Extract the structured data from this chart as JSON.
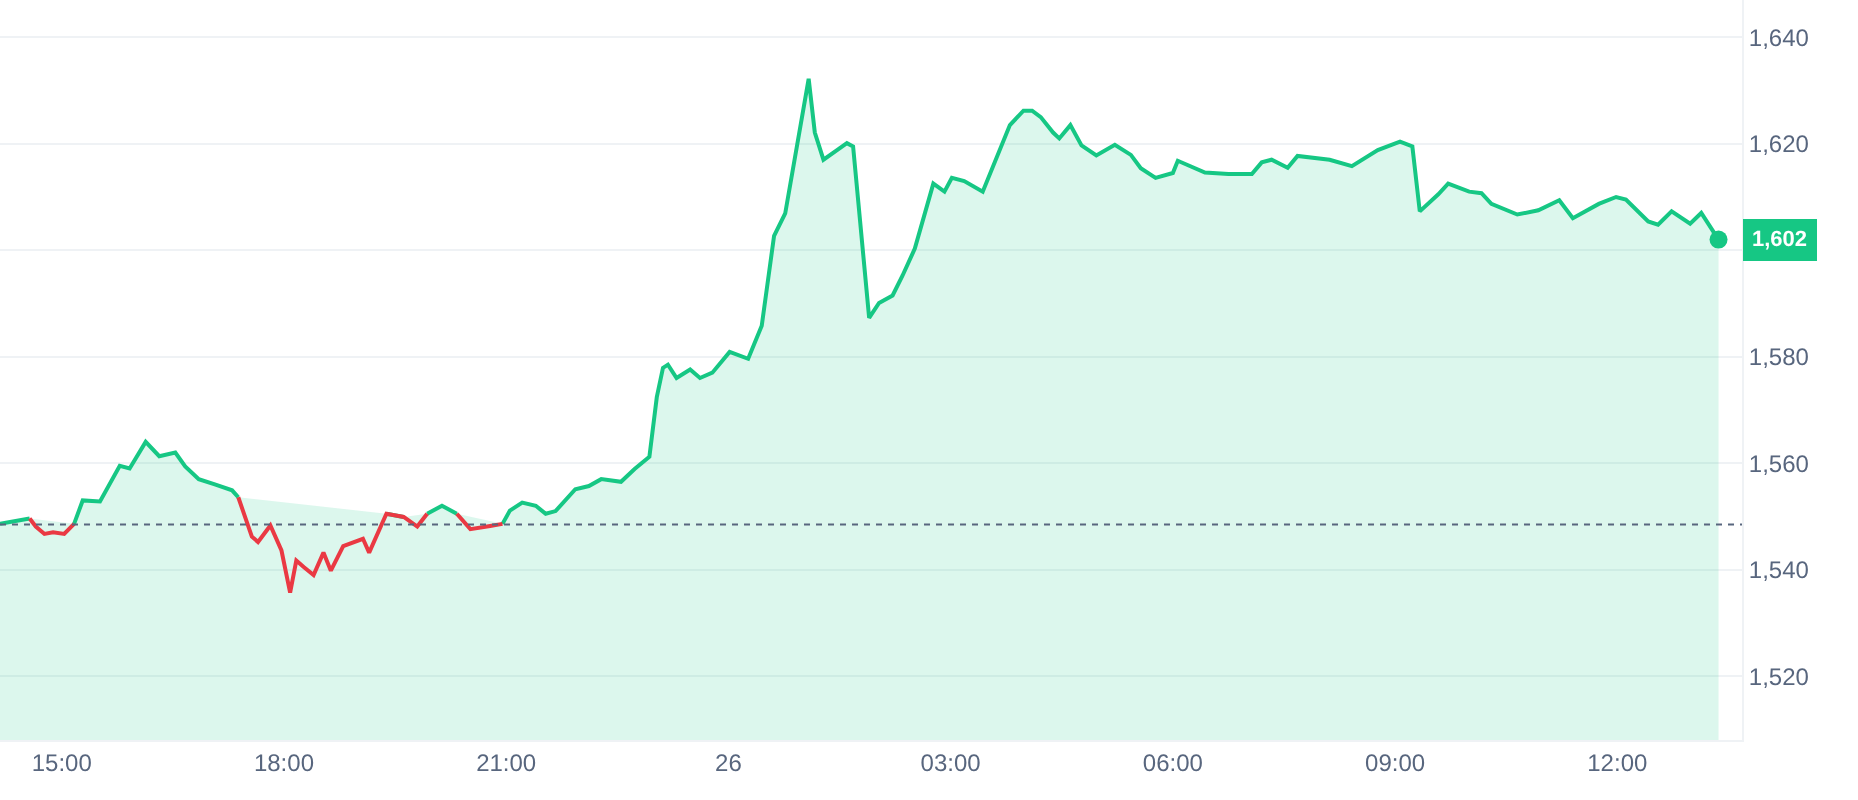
{
  "chart_data": {
    "type": "line",
    "x": [
      "--01-25T14:10",
      "--01-25T14:34",
      "--01-25T14:39",
      "--01-25T14:46",
      "--01-25T14:53",
      "--01-25T15:02",
      "--01-25T15:10",
      "--01-25T15:17",
      "--01-25T15:31",
      "--01-25T15:47",
      "--01-25T15:55",
      "--01-25T16:08",
      "--01-25T16:19",
      "--01-25T16:32",
      "--01-25T16:40",
      "--01-25T16:51",
      "--01-25T17:04",
      "--01-25T17:18",
      "--01-25T17:23",
      "--01-25T17:34",
      "--01-25T17:39",
      "--01-25T17:49",
      "--01-25T17:58",
      "--01-25T18:05",
      "--01-25T18:10",
      "--01-25T18:16",
      "--01-25T18:24",
      "--01-25T18:32",
      "--01-25T18:38",
      "--01-25T18:48",
      "--01-25T19:04",
      "--01-25T19:09",
      "--01-25T19:23",
      "--01-25T19:37",
      "--01-25T19:48",
      "--01-25T19:56",
      "--01-25T20:08",
      "--01-25T20:20",
      "--01-25T20:31",
      "--01-25T20:47",
      "--01-25T20:57",
      "--01-25T21:03",
      "--01-25T21:13",
      "--01-25T21:24",
      "--01-25T21:32",
      "--01-25T21:40",
      "--01-25T21:56",
      "--01-25T22:07",
      "--01-25T22:17",
      "--01-25T22:33",
      "--01-25T22:44",
      "--01-25T22:56",
      "--01-25T23:02",
      "--01-25T23:07",
      "--01-25T23:11",
      "--01-25T23:18",
      "--01-25T23:29",
      "--01-25T23:37",
      "--01-25T23:47",
      "--01-26T00:01",
      "--01-26T00:16",
      "--01-26T00:27",
      "--01-26T00:37",
      "--01-26T00:46",
      "--01-26T01:05",
      "--01-26T01:10",
      "--01-26T01:17",
      "--01-26T01:28",
      "--01-26T01:36",
      "--01-26T01:41",
      "--01-26T01:54",
      "--01-26T02:02",
      "--01-26T02:13",
      "--01-26T02:21",
      "--01-26T02:31",
      "--01-26T02:46",
      "--01-26T02:55",
      "--01-26T03:01",
      "--01-26T03:11",
      "--01-26T03:26",
      "--01-26T03:48",
      "--01-26T03:59",
      "--01-26T04:06",
      "--01-26T04:13",
      "--01-26T04:23",
      "--01-26T04:28",
      "--01-26T04:37",
      "--01-26T04:46",
      "--01-26T04:58",
      "--01-26T05:13",
      "--01-26T05:26",
      "--01-26T05:34",
      "--01-26T05:46",
      "--01-26T06:00",
      "--01-26T06:04",
      "--01-26T06:26",
      "--01-26T06:45",
      "--01-26T07:04",
      "--01-26T07:12",
      "--01-26T07:20",
      "--01-26T07:33",
      "--01-26T07:41",
      "--01-26T08:07",
      "--01-26T08:25",
      "--01-26T08:46",
      "--01-26T09:04",
      "--01-26T09:14",
      "--01-26T09:20",
      "--01-26T09:35",
      "--01-26T09:43",
      "--01-26T10:00",
      "--01-26T10:10",
      "--01-26T10:18",
      "--01-26T10:39",
      "--01-26T10:56",
      "--01-26T11:13",
      "--01-26T11:24",
      "--01-26T11:45",
      "--01-26T11:59",
      "--01-26T12:07",
      "--01-26T12:25",
      "--01-26T12:33",
      "--01-26T12:44",
      "--01-26T12:59",
      "--01-26T13:08",
      "--01-26T13:22"
    ],
    "series": [
      {
        "type": "area",
        "color": "#16c784",
        "values": [
          1548.6,
          1549.6,
          null,
          null,
          null,
          null,
          1548.6,
          1553,
          1552.8,
          1559.5,
          1559,
          1564,
          1561.3,
          1562,
          1559.4,
          1557,
          1556,
          1554.9,
          1553.6,
          null,
          null,
          null,
          null,
          null,
          null,
          null,
          null,
          null,
          null,
          null,
          null,
          null,
          1550.5,
          1549.9,
          null,
          1550.5,
          1552,
          1550.5,
          null,
          null,
          1548.6,
          1551.1,
          1552.6,
          1552,
          1550.5,
          1551,
          1555.1,
          1555.7,
          1557,
          1556.5,
          1558.9,
          1561.2,
          1572.4,
          1577.9,
          1578.5,
          1576,
          1577.6,
          1576,
          1577,
          1580.9,
          1579.6,
          1585.8,
          1602.7,
          1606.9,
          1632.2,
          1622.1,
          1617,
          1618.8,
          1620.1,
          1619.5,
          1587.3,
          1590.1,
          1591.5,
          1595.2,
          1600.3,
          1612.5,
          1611,
          1613.6,
          1613,
          1611,
          1623.5,
          1626.2,
          1626.2,
          1625,
          1622.1,
          1621,
          1623.5,
          1619.7,
          1617.8,
          1619.8,
          1617.9,
          1615.4,
          1613.6,
          1614.5,
          1616.8,
          1614.6,
          1614.3,
          1614.3,
          1616.5,
          1617,
          1615.5,
          1617.7,
          1617,
          1615.8,
          1618.8,
          1620.4,
          1619.5,
          1607.3,
          1610.5,
          1612.5,
          1611,
          1610.7,
          1608.7,
          1606.7,
          1607.5,
          1609.4,
          1606,
          1608.7,
          1610,
          1609.5,
          1605.4,
          1604.8,
          1607.3,
          1605,
          1607,
          1602
        ]
      },
      {
        "color": "#ea3943",
        "x": [
          "--01-25T14:34",
          "--01-25T14:39",
          "--01-25T14:46",
          "--01-25T14:53",
          "--01-25T15:02",
          "--01-25T15:10",
          "--01-25T15:17",
          "--01-25T15:31",
          "--01-25T15:47",
          "--01-25T15:55",
          "--01-25T16:08",
          "--01-25T16:19",
          "--01-25T16:32",
          "--01-25T16:40",
          "--01-25T16:51",
          "--01-25T17:04",
          "--01-25T17:18",
          "--01-25T17:23",
          "--01-25T17:34",
          "--01-25T17:39",
          "--01-25T17:49",
          "--01-25T17:58",
          "--01-25T18:05",
          "--01-25T18:10",
          "--01-25T18:16",
          "--01-25T18:24",
          "--01-25T18:32",
          "--01-25T18:38",
          "--01-25T18:48",
          "--01-25T19:04",
          "--01-25T19:09",
          "--01-25T19:23",
          "--01-25T19:37",
          "--01-25T19:48",
          "--01-25T19:56",
          "--01-25T20:08",
          "--01-25T20:20",
          "--01-25T20:31",
          "--01-25T20:47",
          "--01-25T20:57"
        ],
        "values": [
          1549.6,
          1548.1,
          1546.7,
          1547,
          1546.7,
          1548.6,
          null,
          null,
          null,
          null,
          null,
          null,
          null,
          null,
          null,
          null,
          null,
          1553.6,
          1546.2,
          1545.2,
          1548.3,
          1543.6,
          1535.7,
          1541.7,
          1540.5,
          1539,
          1543.2,
          1539.8,
          1544.4,
          1545.8,
          1543.2,
          1550.5,
          1549.9,
          1548.1,
          1550.5,
          null,
          1550.5,
          1547.6,
          1548.2,
          1548.6
        ]
      }
    ],
    "xlim": [
      "--01-25T14:10",
      "--01-26T13:41"
    ],
    "xticks": [
      {
        "value": "--01-25T15:00",
        "label": "15:00"
      },
      {
        "value": "--01-25T18:00",
        "label": "18:00"
      },
      {
        "value": "--01-25T21:00",
        "label": "21:00"
      },
      {
        "value": "--01-26T00:00",
        "label": "26"
      },
      {
        "value": "--01-26T03:00",
        "label": "03:00"
      },
      {
        "value": "--01-26T06:00",
        "label": "06:00"
      },
      {
        "value": "--01-26T09:00",
        "label": "09:00"
      },
      {
        "value": "--01-26T12:00",
        "label": "12:00"
      }
    ],
    "ylim": [
      1508,
      1647
    ],
    "yticks": [
      {
        "value": 1520,
        "label": "1,520"
      },
      {
        "value": 1540,
        "label": "1,540"
      },
      {
        "value": 1560,
        "label": "1,560"
      },
      {
        "value": 1580,
        "label": "1,580"
      },
      {
        "value": 1600,
        "label": null
      },
      {
        "value": 1620,
        "label": "1,620"
      },
      {
        "value": 1640,
        "label": "1,640"
      }
    ],
    "ref_lines": [
      {
        "axis": "y",
        "value": 1548.5,
        "color": "#58667e",
        "line_style": "dotted"
      }
    ],
    "annotations": [
      {
        "text": "1,602",
        "x": "--01-26T13:22",
        "y": 1602
      }
    ],
    "grid": "y",
    "marker": "none",
    "line_style": "solid"
  }
}
